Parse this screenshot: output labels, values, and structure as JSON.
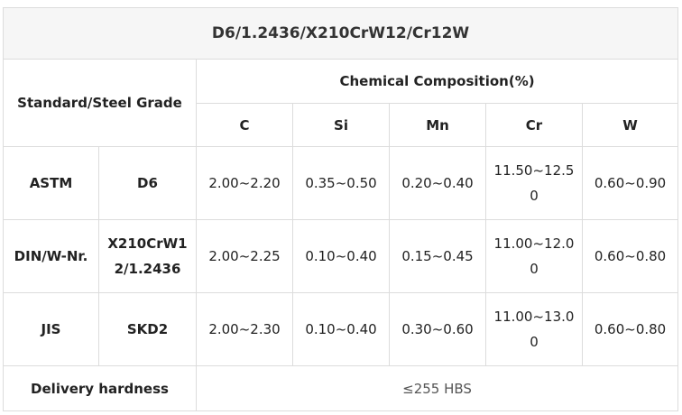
{
  "title": "D6/1.2436/X210CrW12/Cr12W",
  "header": {
    "standard_grade": "Standard/Steel Grade",
    "composition": "Chemical Composition(%)",
    "elements": [
      "C",
      "Si",
      "Mn",
      "Cr",
      "W"
    ]
  },
  "rows": [
    {
      "standard": "ASTM",
      "grade": "D6",
      "c": "2.00~2.20",
      "si": "0.35~0.50",
      "mn": "0.20~0.40",
      "cr": "11.50~12.50",
      "w": "0.60~0.90"
    },
    {
      "standard": "DIN/W-Nr.",
      "grade": "X210CrW12/1.2436",
      "c": "2.00~2.25",
      "si": "0.10~0.40",
      "mn": "0.15~0.45",
      "cr": "11.00~12.00",
      "w": "0.60~0.80"
    },
    {
      "standard": "JIS",
      "grade": "SKD2",
      "c": "2.00~2.30",
      "si": "0.10~0.40",
      "mn": "0.30~0.60",
      "cr": "11.00~13.00",
      "w": "0.60~0.80"
    }
  ],
  "delivery": {
    "label": "Delivery hardness",
    "value": "≤255 HBS"
  }
}
